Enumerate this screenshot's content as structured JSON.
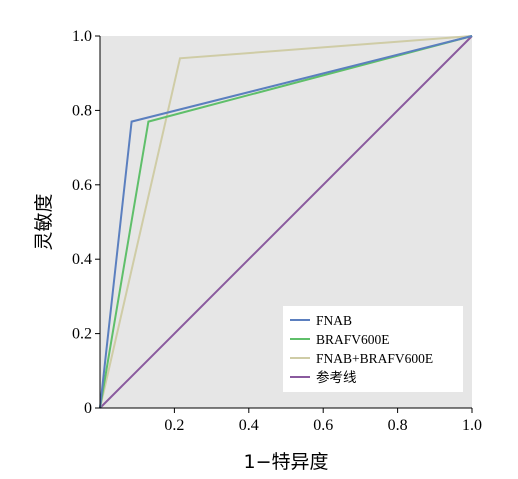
{
  "chart_data": {
    "type": "line",
    "xlabel": "1−特异度",
    "ylabel": "灵敏度",
    "xlim": [
      0,
      1.0
    ],
    "ylim": [
      0,
      1.0
    ],
    "x_ticks": [
      "0.2",
      "0.4",
      "0.6",
      "0.8",
      "1.0"
    ],
    "y_ticks": [
      "0",
      "0.2",
      "0.4",
      "0.6",
      "0.8",
      "1.0"
    ],
    "grid": false,
    "plot_background": "#e6e6e6",
    "legend_position": "bottom-right",
    "series": [
      {
        "name": "FNAB",
        "color": "#5b7fbf",
        "points": [
          [
            0,
            0
          ],
          [
            0.085,
            0.77
          ],
          [
            1.0,
            1.0
          ]
        ]
      },
      {
        "name": "BRAFV600E",
        "color": "#5fbf6a",
        "points": [
          [
            0,
            0
          ],
          [
            0.13,
            0.77
          ],
          [
            1.0,
            1.0
          ]
        ]
      },
      {
        "name": "FNAB+BRAFV600E",
        "color": "#cfcca6",
        "points": [
          [
            0,
            0
          ],
          [
            0.215,
            0.94
          ],
          [
            1.0,
            1.0
          ]
        ]
      },
      {
        "name": "参考线",
        "color": "#8a5a9e",
        "points": [
          [
            0,
            0
          ],
          [
            1.0,
            1.0
          ]
        ]
      }
    ]
  }
}
